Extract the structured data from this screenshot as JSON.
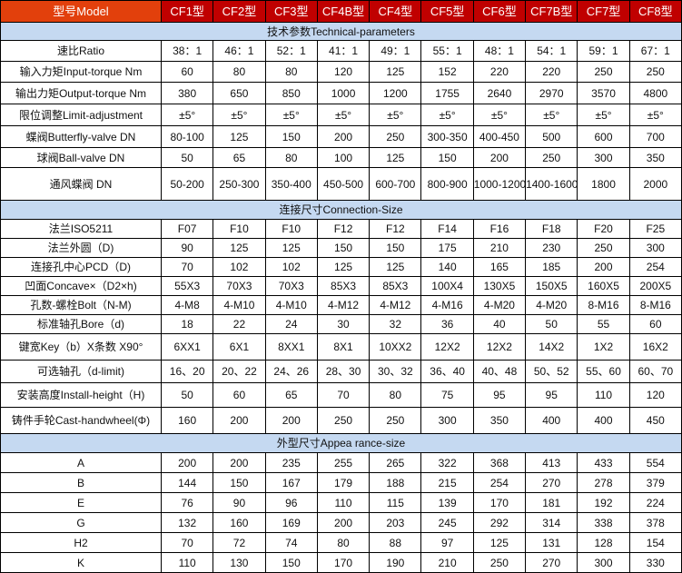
{
  "header": {
    "model_label": "型号Model",
    "models": [
      "CF1型",
      "CF2型",
      "CF3型",
      "CF4B型",
      "CF4型",
      "CF5型",
      "CF6型",
      "CF7B型",
      "CF7型",
      "CF8型"
    ]
  },
  "colors": {
    "model_header": "#e2400c",
    "header": "#c00000",
    "section": "#c5d9f1"
  },
  "sections": [
    {
      "title": "技术参数Technical-parameters",
      "rows": [
        {
          "label": "速比Ratio",
          "values": [
            "38：1",
            "46：1",
            "52：1",
            "41：1",
            "49：1",
            "55：1",
            "48：1",
            "54：1",
            "59：1",
            "67：1"
          ]
        },
        {
          "label": "输入力矩Input-torque Nm",
          "values": [
            "60",
            "80",
            "80",
            "120",
            "125",
            "152",
            "220",
            "220",
            "250",
            "250"
          ]
        },
        {
          "label": "输出力矩Output-torque Nm",
          "values": [
            "380",
            "650",
            "850",
            "1000",
            "1200",
            "1755",
            "2640",
            "2970",
            "3570",
            "4800"
          ]
        },
        {
          "label": "限位调整Limit-adjustment",
          "values": [
            "±5°",
            "±5°",
            "±5°",
            "±5°",
            "±5°",
            "±5°",
            "±5°",
            "±5°",
            "±5°",
            "±5°"
          ]
        },
        {
          "label": "蝶阀Butterfly-valve DN",
          "values": [
            "80-100",
            "125",
            "150",
            "200",
            "250",
            "300-350",
            "400-450",
            "500",
            "600",
            "700"
          ]
        },
        {
          "label": "球阀Ball-valve DN",
          "values": [
            "50",
            "65",
            "80",
            "100",
            "125",
            "150",
            "200",
            "250",
            "300",
            "350"
          ]
        },
        {
          "label": "通风蝶阀  DN",
          "values": [
            "50-200",
            "250-300",
            "350-400",
            "450-500",
            "600-700",
            "800-900",
            "1000-1200",
            "1400-1600",
            "1800",
            "2000"
          ]
        }
      ]
    },
    {
      "title": "连接尺寸Connection-Size",
      "rows": [
        {
          "label": "法兰ISO5211",
          "values": [
            "F07",
            "F10",
            "F10",
            "F12",
            "F12",
            "F14",
            "F16",
            "F18",
            "F20",
            "F25"
          ]
        },
        {
          "label": "法兰外圆（D)",
          "values": [
            "90",
            "125",
            "125",
            "150",
            "150",
            "175",
            "210",
            "230",
            "250",
            "300"
          ]
        },
        {
          "label": "连接孔中心PCD（D)",
          "values": [
            "70",
            "102",
            "102",
            "125",
            "125",
            "140",
            "165",
            "185",
            "200",
            "254"
          ]
        },
        {
          "label": "凹面Concave×（D2×h)",
          "values": [
            "55X3",
            "70X3",
            "70X3",
            "85X3",
            "85X3",
            "100X4",
            "130X5",
            "150X5",
            "160X5",
            "200X5"
          ]
        },
        {
          "label": "孔数-螺栓Bolt（N-M)",
          "values": [
            "4-M8",
            "4-M10",
            "4-M10",
            "4-M12",
            "4-M12",
            "4-M16",
            "4-M20",
            "4-M20",
            "8-M16",
            "8-M16"
          ]
        },
        {
          "label": "标准轴孔Bore（d)",
          "values": [
            "18",
            "22",
            "24",
            "30",
            "32",
            "36",
            "40",
            "50",
            "55",
            "60"
          ]
        },
        {
          "label": "键宽Key（b）X条数 X90°",
          "values": [
            "6XX1",
            "6X1",
            "8XX1",
            "8X1",
            "10XX2",
            "12X2",
            "12X2",
            "14X2",
            "1X2",
            "16X2"
          ]
        },
        {
          "label": "可选轴孔（d-limit)",
          "values": [
            "16、20",
            "20、22",
            "24、26",
            "28、30",
            "30、32",
            "36、40",
            "40、48",
            "50、52",
            "55、60",
            "60、70"
          ]
        },
        {
          "label": "安装高度Install-height（H)",
          "values": [
            "50",
            "60",
            "65",
            "70",
            "80",
            "75",
            "95",
            "95",
            "110",
            "120"
          ]
        },
        {
          "label": "铸件手轮Cast-handwheel(Φ)",
          "values": [
            "160",
            "200",
            "200",
            "250",
            "250",
            "300",
            "350",
            "400",
            "400",
            "450"
          ]
        }
      ]
    },
    {
      "title": "外型尺寸Appea rance-size",
      "rows": [
        {
          "label": "A",
          "values": [
            "200",
            "200",
            "235",
            "255",
            "265",
            "322",
            "368",
            "413",
            "433",
            "554"
          ]
        },
        {
          "label": "B",
          "values": [
            "144",
            "150",
            "167",
            "179",
            "188",
            "215",
            "254",
            "270",
            "278",
            "379"
          ]
        },
        {
          "label": "E",
          "values": [
            "76",
            "90",
            "96",
            "110",
            "115",
            "139",
            "170",
            "181",
            "192",
            "224"
          ]
        },
        {
          "label": "G",
          "values": [
            "132",
            "160",
            "169",
            "200",
            "203",
            "245",
            "292",
            "314",
            "338",
            "378"
          ]
        },
        {
          "label": "H2",
          "values": [
            "70",
            "72",
            "74",
            "80",
            "88",
            "97",
            "125",
            "131",
            "128",
            "154"
          ]
        },
        {
          "label": "K",
          "values": [
            "110",
            "130",
            "150",
            "170",
            "190",
            "210",
            "250",
            "270",
            "300",
            "330"
          ]
        }
      ]
    }
  ]
}
